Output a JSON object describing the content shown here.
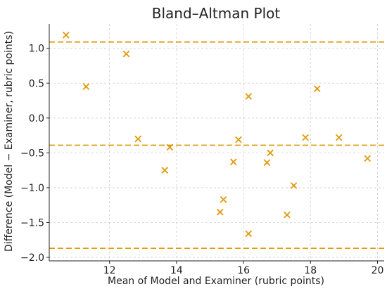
{
  "chart_data": {
    "type": "scatter",
    "title": "Bland–Altman Plot",
    "xlabel": "Mean of Model and Examiner (rubric points)",
    "ylabel": "Difference (Model − Examiner, rubric points)",
    "xlim": [
      10.2,
      20.2
    ],
    "ylim": [
      -2.05,
      1.35
    ],
    "xticks": [
      12,
      14,
      16,
      18,
      20
    ],
    "xtick_labels": [
      "12",
      "14",
      "16",
      "18",
      "20"
    ],
    "yticks": [
      1.0,
      0.5,
      0.0,
      -0.5,
      -1.0,
      -1.5,
      -2.0
    ],
    "ytick_labels": [
      "1.0",
      "0.5",
      "0.0",
      "−0.5",
      "−1.0",
      "−1.5",
      "−2.0"
    ],
    "grid": true,
    "marker": "x",
    "color": "#e09a0b",
    "reference_lines": [
      {
        "y": 1.09
      },
      {
        "y": -0.39
      },
      {
        "y": -1.87
      }
    ],
    "points": [
      {
        "x": 10.7,
        "y": 1.19
      },
      {
        "x": 11.3,
        "y": 0.45
      },
      {
        "x": 12.5,
        "y": 0.92
      },
      {
        "x": 12.85,
        "y": -0.3
      },
      {
        "x": 13.65,
        "y": -0.75
      },
      {
        "x": 13.8,
        "y": -0.42
      },
      {
        "x": 15.3,
        "y": -1.35
      },
      {
        "x": 15.4,
        "y": -1.17
      },
      {
        "x": 15.7,
        "y": -0.63
      },
      {
        "x": 15.85,
        "y": -0.31
      },
      {
        "x": 16.15,
        "y": 0.31
      },
      {
        "x": 16.15,
        "y": -1.66
      },
      {
        "x": 16.7,
        "y": -0.64
      },
      {
        "x": 16.8,
        "y": -0.5
      },
      {
        "x": 17.3,
        "y": -1.39
      },
      {
        "x": 17.5,
        "y": -0.97
      },
      {
        "x": 17.85,
        "y": -0.28
      },
      {
        "x": 18.2,
        "y": 0.42
      },
      {
        "x": 18.85,
        "y": -0.28
      },
      {
        "x": 19.7,
        "y": -0.58
      }
    ]
  }
}
